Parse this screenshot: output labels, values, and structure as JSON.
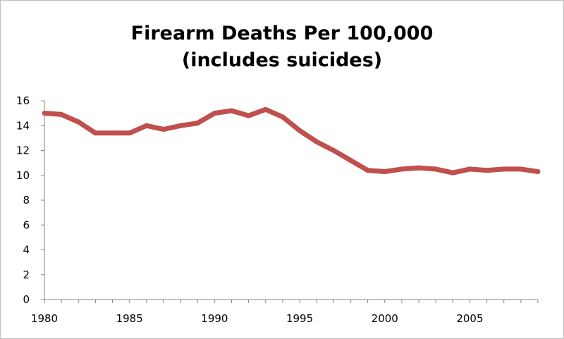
{
  "chart_data": {
    "type": "line",
    "title": "Firearm Deaths Per 100,000",
    "subtitle": "(includes suicides)",
    "xlabel": "",
    "ylabel": "",
    "xlim": [
      1980,
      2009
    ],
    "ylim": [
      0,
      16
    ],
    "x_ticks": [
      "1980",
      "1985",
      "1990",
      "1995",
      "2000",
      "2005"
    ],
    "y_ticks": [
      "0",
      "2",
      "4",
      "6",
      "8",
      "10",
      "12",
      "14",
      "16"
    ],
    "grid": false,
    "legend": "none",
    "series": [
      {
        "color": "#c0504d",
        "x": [
          1980,
          1981,
          1982,
          1983,
          1984,
          1985,
          1986,
          1987,
          1988,
          1989,
          1990,
          1991,
          1992,
          1993,
          1994,
          1995,
          1996,
          1997,
          1998,
          1999,
          2000,
          2001,
          2002,
          2003,
          2004,
          2005,
          2006,
          2007,
          2008,
          2009
        ],
        "values": [
          15.0,
          14.9,
          14.3,
          13.4,
          13.4,
          13.4,
          14.0,
          13.7,
          14.0,
          14.2,
          15.0,
          15.2,
          14.8,
          15.3,
          14.7,
          13.6,
          12.7,
          12.0,
          11.2,
          10.4,
          10.3,
          10.5,
          10.6,
          10.5,
          10.2,
          10.5,
          10.4,
          10.5,
          10.5,
          10.3
        ]
      }
    ]
  }
}
